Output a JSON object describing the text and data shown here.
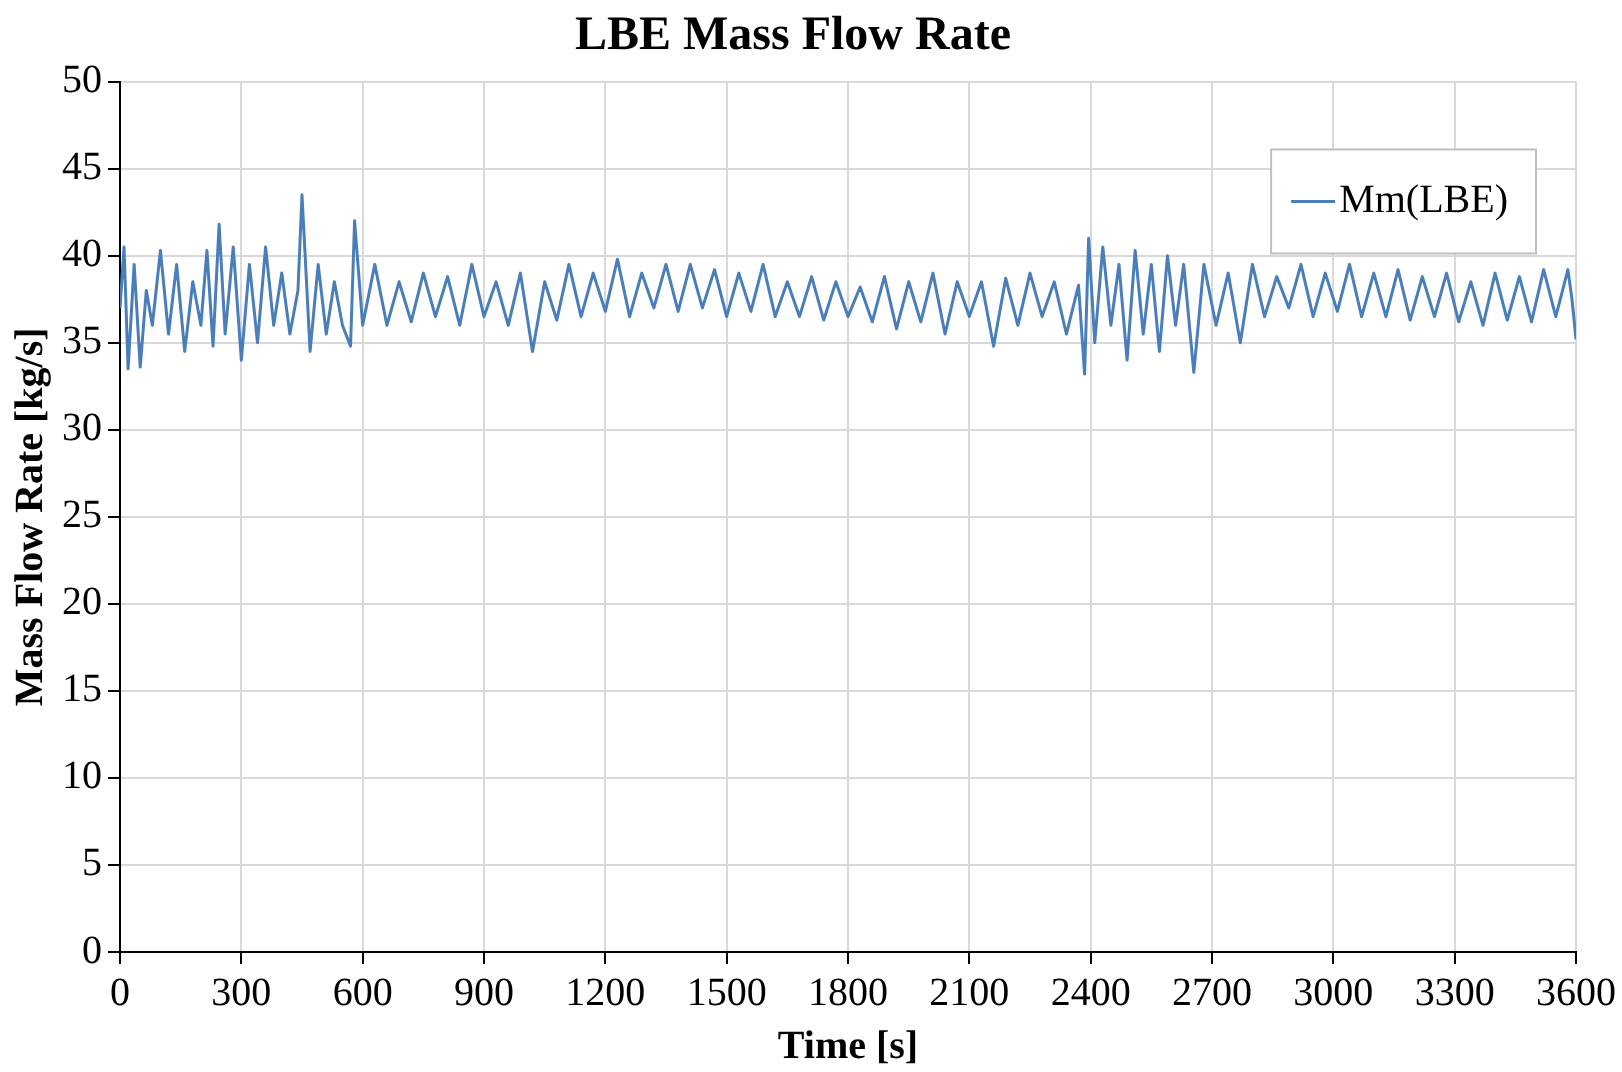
{
  "chart_data": {
    "type": "line",
    "title": "LBE Mass Flow Rate",
    "xlabel": "Time [s]",
    "ylabel": "Mass Flow Rate [kg/s]",
    "xlim": [
      0,
      3600
    ],
    "xticks": [
      0,
      300,
      600,
      900,
      1200,
      1500,
      1800,
      2100,
      2400,
      2700,
      3000,
      3300,
      3600
    ],
    "ylim": [
      0,
      50
    ],
    "yticks": [
      0,
      5,
      10,
      15,
      20,
      25,
      30,
      35,
      40,
      45,
      50
    ],
    "grid": true,
    "legend": "top right",
    "marker": "none",
    "line_style": "solid",
    "x": [
      0,
      10,
      20,
      35,
      50,
      65,
      80,
      100,
      120,
      140,
      160,
      180,
      200,
      215,
      230,
      245,
      260,
      280,
      300,
      320,
      340,
      360,
      380,
      400,
      420,
      440,
      450,
      470,
      490,
      510,
      530,
      550,
      570,
      580,
      600,
      630,
      660,
      690,
      720,
      750,
      780,
      810,
      840,
      870,
      900,
      930,
      960,
      990,
      1020,
      1050,
      1080,
      1110,
      1140,
      1170,
      1200,
      1230,
      1260,
      1290,
      1320,
      1350,
      1380,
      1410,
      1440,
      1470,
      1500,
      1530,
      1560,
      1590,
      1620,
      1650,
      1680,
      1710,
      1740,
      1770,
      1800,
      1830,
      1860,
      1890,
      1920,
      1950,
      1980,
      2010,
      2040,
      2070,
      2100,
      2130,
      2160,
      2190,
      2220,
      2250,
      2280,
      2310,
      2340,
      2370,
      2385,
      2395,
      2410,
      2430,
      2450,
      2470,
      2490,
      2510,
      2530,
      2550,
      2570,
      2590,
      2610,
      2630,
      2655,
      2680,
      2710,
      2740,
      2770,
      2800,
      2830,
      2860,
      2890,
      2920,
      2950,
      2980,
      3010,
      3040,
      3070,
      3100,
      3130,
      3160,
      3190,
      3220,
      3250,
      3280,
      3310,
      3340,
      3370,
      3400,
      3430,
      3460,
      3490,
      3520,
      3550,
      3580,
      3590,
      3600
    ],
    "series": [
      {
        "name": "Mm(LBE)",
        "color": "#4a7ebb",
        "values": [
          37,
          40.5,
          33.5,
          39.5,
          33.6,
          38,
          36,
          40.3,
          35.5,
          39.5,
          34.5,
          38.5,
          36,
          40.3,
          34.8,
          41.8,
          35.5,
          40.5,
          34,
          39.5,
          35,
          40.5,
          36,
          39,
          35.5,
          38,
          43.5,
          34.5,
          39.5,
          35.5,
          38.5,
          36,
          34.8,
          42,
          36,
          39.5,
          36,
          38.5,
          36.2,
          39,
          36.5,
          38.8,
          36,
          39.5,
          36.5,
          38.5,
          36,
          39,
          34.5,
          38.5,
          36.3,
          39.5,
          36.5,
          39,
          36.8,
          39.8,
          36.5,
          39,
          37,
          39.5,
          36.8,
          39.5,
          37,
          39.2,
          36.5,
          39,
          36.8,
          39.5,
          36.5,
          38.5,
          36.5,
          38.8,
          36.3,
          38.5,
          36.5,
          38.2,
          36.2,
          38.8,
          35.8,
          38.5,
          36.2,
          39,
          35.5,
          38.5,
          36.5,
          38.5,
          34.8,
          38.7,
          36,
          39,
          36.5,
          38.5,
          35.5,
          38.3,
          33.2,
          41,
          35,
          40.5,
          36,
          39.5,
          34,
          40.3,
          35.5,
          39.5,
          34.5,
          40,
          36,
          39.5,
          33.3,
          39.5,
          36,
          39,
          35,
          39.5,
          36.5,
          38.8,
          37,
          39.5,
          36.5,
          39,
          36.8,
          39.5,
          36.5,
          39,
          36.5,
          39.2,
          36.3,
          38.8,
          36.5,
          39,
          36.2,
          38.5,
          36,
          39,
          36.3,
          38.8,
          36.2,
          39.2,
          36.5,
          39.2,
          37.5,
          35.2
        ]
      }
    ]
  }
}
